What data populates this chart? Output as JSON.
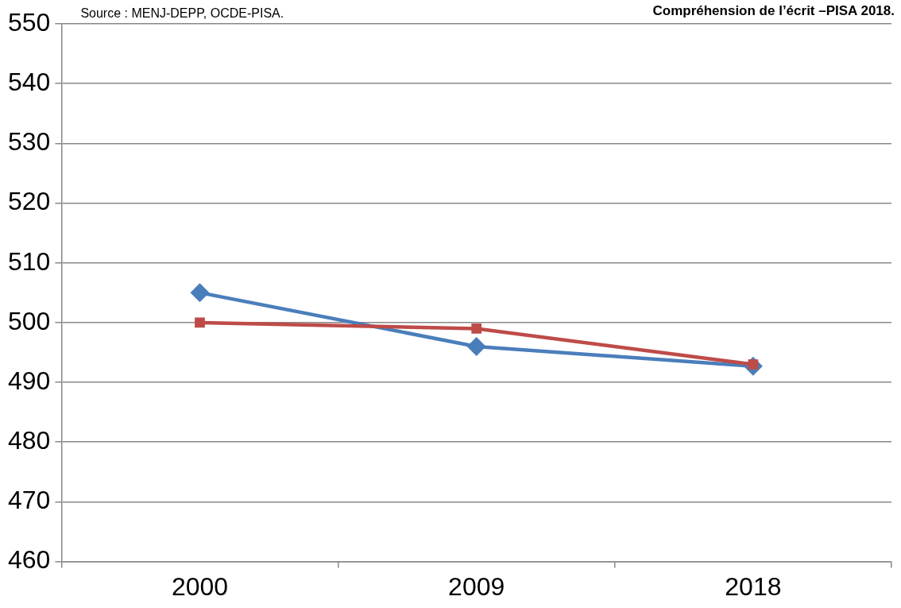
{
  "chart_data": {
    "type": "line",
    "title": "Compréhension de l’écrit –PISA 2018.",
    "annotations": [
      "Source : MENJ-DEPP, OCDE-PISA."
    ],
    "categories": [
      "2000",
      "2009",
      "2018"
    ],
    "series": [
      {
        "color": "#4a7ebb",
        "values": [
          505,
          496,
          492.7
        ],
        "marker": "diamond"
      },
      {
        "color": "#be4b48",
        "values": [
          500,
          499,
          493
        ],
        "marker": "square"
      }
    ],
    "ylim": [
      460,
      550
    ],
    "yticks": [
      460,
      470,
      480,
      490,
      500,
      510,
      520,
      530,
      540,
      550
    ],
    "grid": "y",
    "legend": false,
    "line_style": "solid"
  }
}
